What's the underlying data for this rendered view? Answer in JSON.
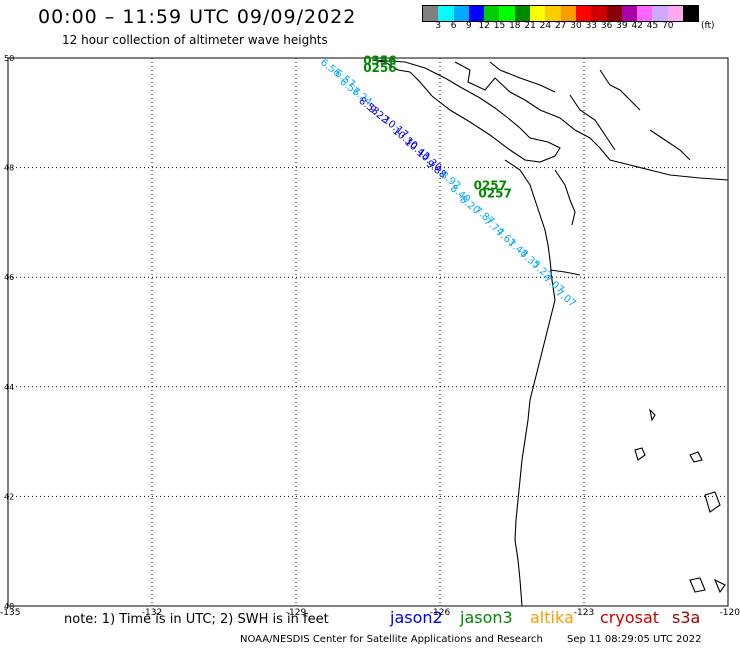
{
  "header": {
    "title": "00:00 – 11:59 UTC 09/09/2022",
    "subtitle": "12 hour collection of altimeter wave heights"
  },
  "colorbar": {
    "colors": [
      "#808080",
      "#00ffff",
      "#00aaff",
      "#0000ff",
      "#00cc00",
      "#00ff00",
      "#008800",
      "#ffff00",
      "#ffcc00",
      "#ff9900",
      "#ff0000",
      "#cc0000",
      "#880000",
      "#aa00aa",
      "#ff66ff",
      "#ccaaff",
      "#ffaaee",
      "#000000"
    ],
    "ticks": [
      "3",
      "6",
      "9",
      "12",
      "15",
      "18",
      "21",
      "24",
      "27",
      "30",
      "33",
      "36",
      "39",
      "42",
      "45",
      "70"
    ],
    "unit": "(ft)"
  },
  "axes": {
    "lon_ticks": [
      -135,
      -132,
      -129,
      -126,
      -123,
      -120
    ],
    "lon_labels": [
      "-135",
      "-132",
      "-129",
      "-126",
      "-123",
      "-120"
    ],
    "lat_ticks": [
      50,
      48,
      46,
      44,
      42,
      40
    ],
    "lat_labels": [
      "50",
      "48",
      "46",
      "44",
      "42",
      "40"
    ],
    "lon_range": [
      -135,
      -120
    ],
    "lat_range": [
      40,
      50
    ]
  },
  "passes": [
    {
      "satellite": "jason3",
      "color": "#008800",
      "time": "0356",
      "pos": [
        -127.6,
        49.88
      ]
    },
    {
      "satellite": "jason3",
      "color": "#008800",
      "time": "0256",
      "pos": [
        -127.6,
        49.74
      ]
    },
    {
      "satellite": "jason3",
      "color": "#008800",
      "time": "0257",
      "pos": [
        -125.3,
        47.6
      ]
    },
    {
      "satellite": "jason3",
      "color": "#008800",
      "time": "0257",
      "pos": [
        -125.2,
        47.45
      ]
    }
  ],
  "track_labels": [
    {
      "text": "6.56",
      "color": "#00aaff",
      "pos": [
        -128.5,
        49.9
      ]
    },
    {
      "text": "6.57",
      "color": "#00aaff",
      "pos": [
        -128.2,
        49.7
      ]
    },
    {
      "text": "6.56",
      "color": "#00aaff",
      "pos": [
        -128.1,
        49.55
      ]
    },
    {
      "text": "7.24",
      "color": "#00aaff",
      "pos": [
        -127.85,
        49.38
      ]
    },
    {
      "text": "8.53",
      "color": "#0000ff",
      "pos": [
        -127.7,
        49.2
      ]
    },
    {
      "text": "9.22",
      "color": "#0000ff",
      "pos": [
        -127.5,
        49.05
      ]
    },
    {
      "text": "10.17",
      "color": "#0000ff",
      "pos": [
        -127.2,
        48.85
      ]
    },
    {
      "text": "10.30",
      "color": "#0000ff",
      "pos": [
        -127.0,
        48.65
      ]
    },
    {
      "text": "10.43",
      "color": "#0000ff",
      "pos": [
        -126.75,
        48.45
      ]
    },
    {
      "text": "10.30",
      "color": "#0000ff",
      "pos": [
        -126.5,
        48.25
      ]
    },
    {
      "text": "9.88",
      "color": "#0000ff",
      "pos": [
        -126.3,
        48.05
      ]
    },
    {
      "text": "8.92",
      "color": "#00aaff",
      "pos": [
        -126.0,
        47.85
      ]
    },
    {
      "text": "8.40",
      "color": "#00aaff",
      "pos": [
        -125.8,
        47.6
      ]
    },
    {
      "text": "8.20",
      "color": "#00aaff",
      "pos": [
        -125.6,
        47.4
      ]
    },
    {
      "text": "7.87",
      "color": "#00aaff",
      "pos": [
        -125.3,
        47.2
      ]
    },
    {
      "text": "7.74",
      "color": "#00aaff",
      "pos": [
        -125.1,
        47.0
      ]
    },
    {
      "text": "7.61",
      "color": "#00aaff",
      "pos": [
        -124.85,
        46.8
      ]
    },
    {
      "text": "7.48",
      "color": "#00aaff",
      "pos": [
        -124.6,
        46.6
      ]
    },
    {
      "text": "7.35",
      "color": "#00aaff",
      "pos": [
        -124.35,
        46.4
      ]
    },
    {
      "text": "7.22",
      "color": "#00aaff",
      "pos": [
        -124.1,
        46.2
      ]
    },
    {
      "text": "7.07",
      "color": "#00aaff",
      "pos": [
        -123.85,
        45.95
      ]
    },
    {
      "text": "7.07",
      "color": "#00aaff",
      "pos": [
        -123.6,
        45.7
      ]
    }
  ],
  "note": "note: 1) Time is in UTC; 2) SWH is in feet",
  "legend": [
    {
      "name": "jason2",
      "color": "#0000ee"
    },
    {
      "name": "jason3",
      "color": "#008800"
    },
    {
      "name": "altika",
      "color": "#ff9900"
    },
    {
      "name": "cryosat",
      "color": "#cc0000"
    },
    {
      "name": "s3a",
      "color": "#990000"
    }
  ],
  "footer": "NOAA/NESDIS Center for Satellite Applications and Research",
  "timestamp": "Sep 11 08:29:05 UTC 2022"
}
